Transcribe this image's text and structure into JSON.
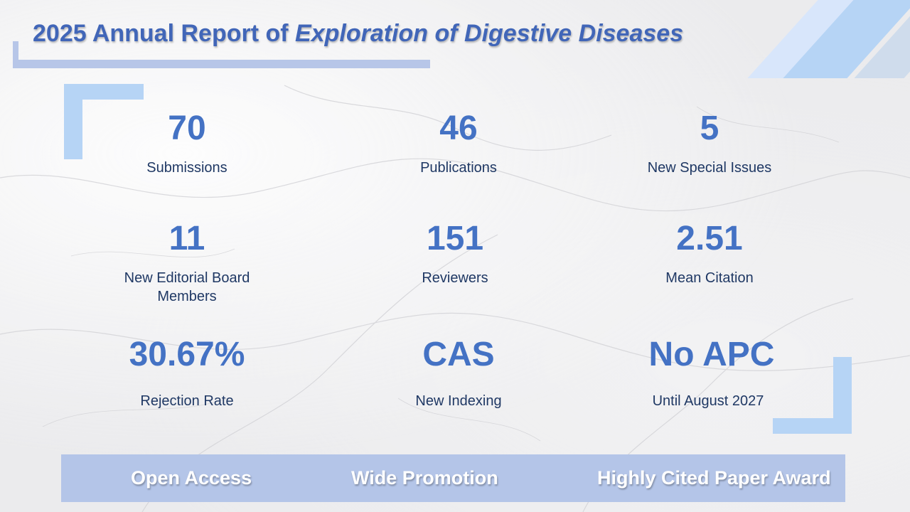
{
  "header": {
    "title_prefix": "2025 Annual Report of",
    "title_journal": "Exploration of Digestive Diseases"
  },
  "stats": [
    {
      "value": "70",
      "label": "Submissions"
    },
    {
      "value": "46",
      "label": "Publications"
    },
    {
      "value": "5",
      "label": "New Special Issues"
    },
    {
      "value": "11",
      "label": "New Editorial Board Members"
    },
    {
      "value": "151",
      "label": "Reviewers"
    },
    {
      "value": "2.51",
      "label": "Mean Citation"
    },
    {
      "value": "30.67%",
      "label": "Rejection Rate"
    },
    {
      "value": "CAS",
      "label": "New Indexing"
    },
    {
      "value": "No APC",
      "label": "Until August 2027"
    }
  ],
  "banner": {
    "items": [
      "Open Access",
      "Wide Promotion",
      "Highly Cited Paper Award"
    ]
  },
  "colors": {
    "accent": "#4472c4",
    "label": "#1f3864",
    "banner": "#b4c5e8",
    "decor": "#b6d4f5"
  }
}
